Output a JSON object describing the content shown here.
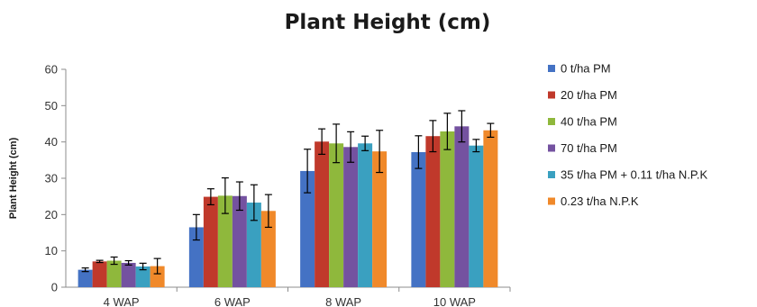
{
  "chart_data": {
    "type": "bar",
    "title": "Plant Height (cm)",
    "xlabel": "",
    "ylabel": "Plant Height (cm)",
    "ylim": [
      0,
      60
    ],
    "yticks": [
      0,
      10,
      20,
      30,
      40,
      50,
      60
    ],
    "categories": [
      "4 WAP",
      "6 WAP",
      "8 WAP",
      "10 WAP"
    ],
    "grid": false,
    "legend_position": "right",
    "series": [
      {
        "name": "0 t/ha PM",
        "color": "#4472c4",
        "values": [
          4.8,
          16.5,
          32.0,
          37.2
        ],
        "errors": [
          0.5,
          3.5,
          6.0,
          4.5
        ]
      },
      {
        "name": "20 t/ha PM",
        "color": "#c0392b",
        "values": [
          7.1,
          24.9,
          40.1,
          41.6
        ],
        "errors": [
          0.3,
          2.2,
          3.5,
          4.3
        ]
      },
      {
        "name": "40 t/ha PM",
        "color": "#8fb83c",
        "values": [
          7.3,
          25.2,
          39.6,
          42.9
        ],
        "errors": [
          1.0,
          4.9,
          5.3,
          5.0
        ]
      },
      {
        "name": "70 t/ha PM",
        "color": "#7452a0",
        "values": [
          6.7,
          25.1,
          38.6,
          44.3
        ],
        "errors": [
          0.6,
          3.9,
          4.2,
          4.3
        ]
      },
      {
        "name": "35 t/ha PM + 0.11 t/ha N.P.K",
        "color": "#3aa0c0",
        "values": [
          5.7,
          23.3,
          39.6,
          39.0
        ],
        "errors": [
          0.9,
          4.9,
          2.0,
          1.7
        ]
      },
      {
        "name": "0.23 t/ha N.P.K",
        "color": "#f0892a",
        "values": [
          5.8,
          21.0,
          37.4,
          43.2
        ],
        "errors": [
          2.1,
          4.5,
          5.8,
          1.9
        ]
      }
    ]
  }
}
